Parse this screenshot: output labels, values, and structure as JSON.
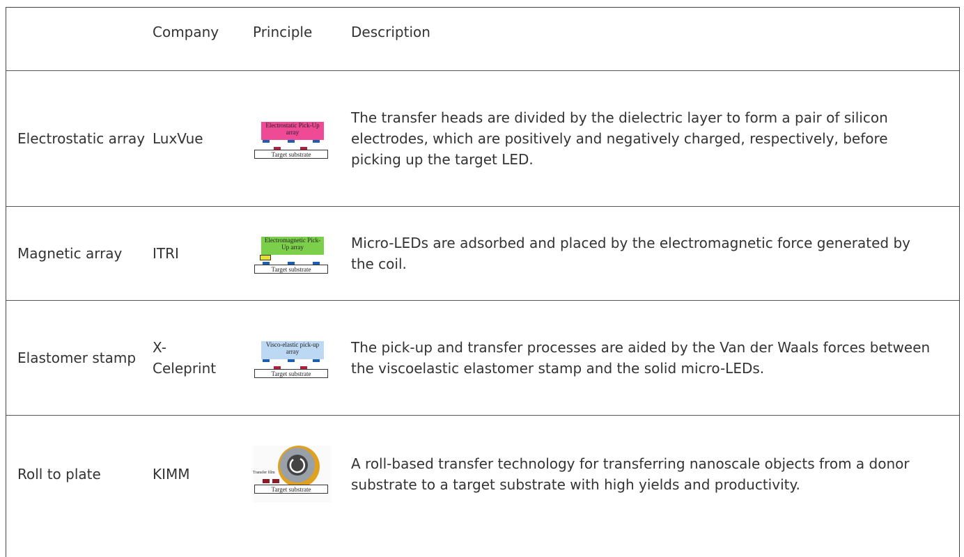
{
  "table": {
    "header": {
      "company": "Company",
      "principle": "Principle",
      "description": "Description"
    },
    "rows": [
      {
        "name": "Electrostatic array",
        "company": "LuxVue",
        "principle": {
          "head": "Electrostatic Pick-Up array",
          "substrate": "Target substrate"
        },
        "description": "The transfer heads are divided by the dielectric layer to form a pair of silicon electrodes, which are positively and negatively charged, respectively, before picking up the target LED."
      },
      {
        "name": "Magnetic array",
        "company": "ITRI",
        "principle": {
          "head": "Electromagnetic Pick-Up array",
          "substrate": "Target substrate"
        },
        "description": "Micro-LEDs are adsorbed and placed by the electromagnetic force generated by the coil."
      },
      {
        "name": "Elastomer stamp",
        "company": "X-Celeprint",
        "principle": {
          "head": "Visco-elastic pick-up array",
          "substrate": "Target substrate"
        },
        "description": "The pick-up and transfer processes are aided by the Van der Waals forces between the viscoelastic elastomer stamp and the solid micro-LEDs."
      },
      {
        "name": "Roll to plate",
        "company": "KIMM",
        "principle": {
          "film": "Transfer film",
          "substrate": "Target substrate"
        },
        "description": "A roll-based transfer technology for transferring nanoscale objects from a donor substrate to a target substrate with high yields and productivity."
      }
    ]
  }
}
